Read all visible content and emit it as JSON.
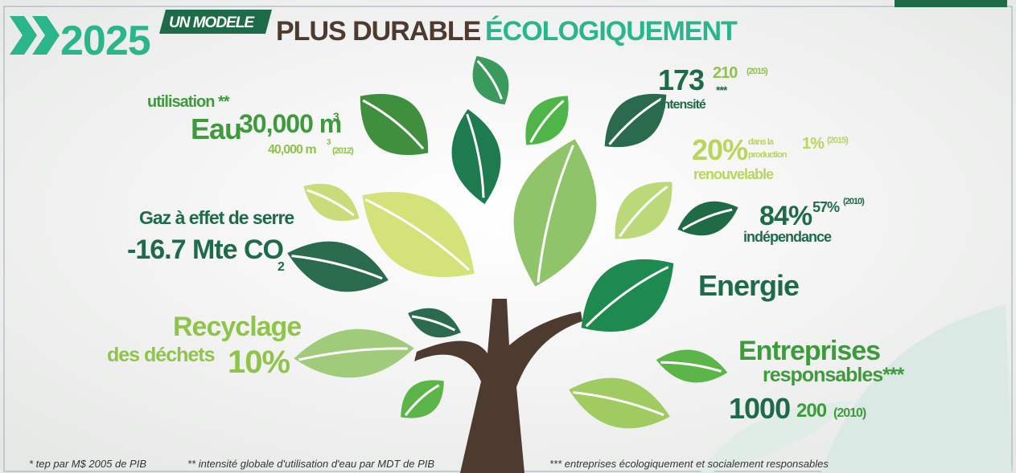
{
  "header": {
    "year": "2025",
    "tag": "UN MODELE",
    "title_a": "PLUS DURABLE",
    "title_b": "ÉCOLOGIQUEMENT"
  },
  "water": {
    "label": "utilisation **",
    "name": "Eau",
    "value": "30,000 m",
    "value_unit": "3",
    "previous": "40,000 m",
    "previous_unit": "3",
    "previous_year": "(2012)"
  },
  "intensity": {
    "value": "173",
    "previous": "210",
    "previous_year": "(2015)",
    "note": "***",
    "label": "intensité"
  },
  "renewable": {
    "value": "20%",
    "detail_a": "dans la",
    "detail_b": "production",
    "previous": "1%",
    "previous_year": "(2015)",
    "label": "renouvelable"
  },
  "independence": {
    "value": "84%",
    "previous": "57%",
    "previous_year": "(2010)",
    "label": "indépendance"
  },
  "energy": {
    "label": "Energie"
  },
  "ghg": {
    "label": "Gaz à effet de serre",
    "value": "-16.7 Mte CO",
    "value_sub": "2"
  },
  "recycling": {
    "label_a": "Recyclage",
    "label_b": "des déchets",
    "value": "10%"
  },
  "enterprises": {
    "label_a": "Entreprises",
    "label_b": "responsables***",
    "value": "1000",
    "previous": "200",
    "previous_year": "(2010)"
  },
  "footnotes": [
    "* tep par M$ 2005 de PIB",
    "** intensité globale d'utilisation d'eau par MDT de PIB",
    "*** entreprises écologiquement et socialement responsables"
  ]
}
